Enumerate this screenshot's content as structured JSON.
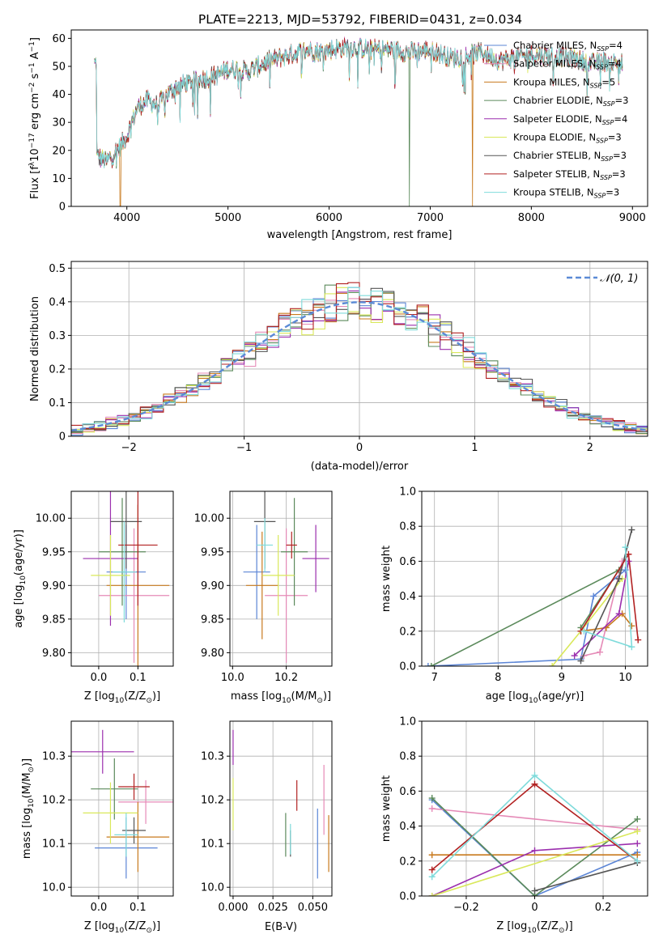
{
  "figure": {
    "title": "PLATE=2213, MJD=53792, FIBERID=0431, z=0.034"
  },
  "colors": [
    "#5b85d6",
    "#e58ab7",
    "#c87a1e",
    "#5b8a5b",
    "#9b2fae",
    "#d9e85a",
    "#555555",
    "#b22222",
    "#7fdbdb"
  ],
  "chart_data": [
    {
      "id": "spectrum",
      "type": "line",
      "title": "PLATE=2213, MJD=53792, FIBERID=0431, z=0.034",
      "xlabel": "wavelength [Angstrom, rest frame]",
      "ylabel_parts": [
        "Flux [f",
        "λ",
        "10",
        "−17",
        " erg cm",
        "−2",
        " s",
        "−1",
        " A",
        "−1",
        "]"
      ],
      "xlim": [
        3450,
        9150
      ],
      "ylim": [
        0,
        63
      ],
      "xticks": [
        4000,
        5000,
        6000,
        7000,
        8000,
        9000
      ],
      "yticks": [
        0,
        10,
        20,
        30,
        40,
        50,
        60
      ],
      "legend_position": "top-right",
      "legend": [
        {
          "base": "Chabrier MILES, N",
          "sub": "SSP",
          "val": "=4"
        },
        {
          "base": "Salpeter MILES, N",
          "sub": "SSP",
          "val": "=4"
        },
        {
          "base": "Kroupa MILES, N",
          "sub": "SSP",
          "val": "=5"
        },
        {
          "base": "Chabrier ELODIE, N",
          "sub": "SSP",
          "val": "=3"
        },
        {
          "base": "Salpeter ELODIE, N",
          "sub": "SSP",
          "val": "=4"
        },
        {
          "base": "Kroupa ELODIE, N",
          "sub": "SSP",
          "val": "=3"
        },
        {
          "base": "Chabrier STELIB, N",
          "sub": "SSP",
          "val": "=3"
        },
        {
          "base": "Salpeter STELIB, N",
          "sub": "SSP",
          "val": "=3"
        },
        {
          "base": "Kroupa STELIB, N",
          "sub": "SSP",
          "val": "=3"
        }
      ],
      "continuum": [
        [
          3700,
          18
        ],
        [
          3800,
          16
        ],
        [
          3900,
          20
        ],
        [
          4000,
          25
        ],
        [
          4100,
          35
        ],
        [
          4200,
          38
        ],
        [
          4300,
          36
        ],
        [
          4400,
          40
        ],
        [
          4500,
          43
        ],
        [
          4600,
          44
        ],
        [
          4700,
          45
        ],
        [
          4800,
          46
        ],
        [
          4900,
          47
        ],
        [
          5000,
          49
        ],
        [
          5100,
          49
        ],
        [
          5200,
          48
        ],
        [
          5300,
          50
        ],
        [
          5400,
          52
        ],
        [
          5500,
          53
        ],
        [
          5600,
          54
        ],
        [
          5700,
          55
        ],
        [
          5800,
          56
        ],
        [
          5900,
          55
        ],
        [
          6000,
          56
        ],
        [
          6200,
          57
        ],
        [
          6400,
          56
        ],
        [
          6600,
          56
        ],
        [
          6800,
          55
        ],
        [
          7000,
          56
        ],
        [
          7200,
          53
        ],
        [
          7400,
          54
        ],
        [
          7500,
          55
        ],
        [
          7700,
          52
        ],
        [
          7800,
          53
        ],
        [
          8000,
          54
        ],
        [
          8100,
          54
        ],
        [
          8400,
          53
        ],
        [
          8600,
          51
        ],
        [
          8700,
          52
        ],
        [
          8900,
          51
        ]
      ],
      "dips": [
        {
          "x": 3935,
          "to": 0,
          "series": 2
        },
        {
          "x": 6795,
          "to": 0,
          "series": 3
        },
        {
          "x": 7420,
          "to": 0,
          "series": 2
        }
      ]
    },
    {
      "id": "residuals",
      "type": "step",
      "xlabel": "(data-model)/error",
      "ylabel": "Normed distribution",
      "xlim": [
        -2.5,
        2.5
      ],
      "ylim": [
        0,
        0.52
      ],
      "xticks": [
        -2,
        -1,
        0,
        1,
        2
      ],
      "yticks": [
        0,
        0.1,
        0.2,
        0.3,
        0.4,
        0.5
      ],
      "grid": true,
      "legend_position": "top-right",
      "normal_curve_label": "𝒩(0, 1)",
      "normal_mean": 0,
      "normal_sigma": 1,
      "bin_width": 0.1
    },
    {
      "id": "age-vs-Z",
      "type": "errorbar",
      "xlabel_parts": [
        "Z [log",
        "10",
        "(Z/Z",
        "⊙",
        ")]"
      ],
      "ylabel_parts": [
        "age  [log",
        "10",
        "(age/yr)]"
      ],
      "xlim": [
        -0.07,
        0.19
      ],
      "ylim": [
        9.78,
        10.04
      ],
      "xticks": [
        0.0,
        0.1
      ],
      "yticks": [
        9.8,
        9.85,
        9.9,
        9.95,
        10.0
      ],
      "points": [
        {
          "x": 0.07,
          "y": 9.92,
          "xerr": 0.05,
          "yerr": 0.07
        },
        {
          "x": 0.09,
          "y": 9.885,
          "xerr": 0.09,
          "yerr": 0.1
        },
        {
          "x": 0.1,
          "y": 9.9,
          "xerr": 0.08,
          "yerr": 0.12
        },
        {
          "x": 0.06,
          "y": 9.95,
          "xerr": 0.06,
          "yerr": 0.08
        },
        {
          "x": 0.03,
          "y": 9.94,
          "xerr": 0.07,
          "yerr": 0.1
        },
        {
          "x": 0.03,
          "y": 9.915,
          "xerr": 0.05,
          "yerr": 0.06
        },
        {
          "x": 0.07,
          "y": 9.995,
          "xerr": 0.04,
          "yerr": 0.07
        },
        {
          "x": 0.1,
          "y": 9.96,
          "xerr": 0.05,
          "yerr": 0.09
        },
        {
          "x": 0.065,
          "y": 9.92,
          "xerr": 0.03,
          "yerr": 0.075
        }
      ]
    },
    {
      "id": "age-vs-mass",
      "type": "errorbar",
      "xlabel_parts": [
        "mass [log",
        "10",
        "(M/M",
        "⊙",
        ")]"
      ],
      "xlim": [
        9.99,
        10.37
      ],
      "ylim": [
        9.78,
        10.04
      ],
      "xticks": [
        10.0,
        10.2
      ],
      "yticks": [
        9.8,
        9.85,
        9.9,
        9.95,
        10.0
      ],
      "points": [
        {
          "x": 10.09,
          "y": 9.92,
          "xerr": 0.05,
          "yerr": 0.07
        },
        {
          "x": 10.2,
          "y": 9.885,
          "xerr": 0.08,
          "yerr": 0.1
        },
        {
          "x": 10.11,
          "y": 9.9,
          "xerr": 0.06,
          "yerr": 0.08
        },
        {
          "x": 10.23,
          "y": 9.95,
          "xerr": 0.05,
          "yerr": 0.08
        },
        {
          "x": 10.31,
          "y": 9.94,
          "xerr": 0.05,
          "yerr": 0.05
        },
        {
          "x": 10.17,
          "y": 9.915,
          "xerr": 0.06,
          "yerr": 0.06
        },
        {
          "x": 10.12,
          "y": 9.995,
          "xerr": 0.04,
          "yerr": 0.07
        },
        {
          "x": 10.22,
          "y": 9.96,
          "xerr": 0.02,
          "yerr": 0.02
        },
        {
          "x": 10.12,
          "y": 9.96,
          "xerr": 0.03,
          "yerr": 0.04
        }
      ]
    },
    {
      "id": "mass-weight-vs-age",
      "type": "line",
      "xlabel_parts": [
        "age  [log",
        "10",
        "(age/yr)]"
      ],
      "ylabel": "mass weight",
      "xlim": [
        6.8,
        10.35
      ],
      "ylim": [
        0,
        1.0
      ],
      "xticks": [
        7,
        8,
        9,
        10
      ],
      "yticks": [
        0,
        0.2,
        0.4,
        0.6,
        0.8,
        1.0
      ],
      "grid": true,
      "series": [
        {
          "x": [
            6.9,
            9.3,
            9.5,
            10.0
          ],
          "y": [
            0.0,
            0.04,
            0.4,
            0.55
          ]
        },
        {
          "x": [
            9.35,
            9.6,
            9.95
          ],
          "y": [
            0.06,
            0.08,
            0.6
          ]
        },
        {
          "x": [
            9.3,
            9.7,
            9.95,
            10.1
          ],
          "y": [
            0.2,
            0.22,
            0.3,
            0.23
          ]
        },
        {
          "x": [
            6.95,
            9.9,
            9.3
          ],
          "y": [
            0.0,
            0.55,
            0.22
          ]
        },
        {
          "x": [
            9.2,
            9.9,
            10.05
          ],
          "y": [
            0.06,
            0.3,
            0.6
          ]
        },
        {
          "x": [
            8.85,
            9.3,
            9.95
          ],
          "y": [
            0.0,
            0.2,
            0.5
          ]
        },
        {
          "x": [
            9.3,
            9.9,
            10.1
          ],
          "y": [
            0.03,
            0.5,
            0.78
          ]
        },
        {
          "x": [
            9.3,
            10.05,
            10.2
          ],
          "y": [
            0.2,
            0.64,
            0.15
          ]
        },
        {
          "x": [
            9.35,
            10.1,
            10.0
          ],
          "y": [
            0.2,
            0.11,
            0.68
          ]
        }
      ]
    },
    {
      "id": "mass-vs-Z",
      "type": "errorbar",
      "xlabel_parts": [
        "Z [log",
        "10",
        "(Z/Z",
        "⊙",
        ")]"
      ],
      "ylabel_parts": [
        "mass [log",
        "10",
        "(M/M",
        "⊙",
        ")]"
      ],
      "xlim": [
        -0.07,
        0.19
      ],
      "ylim": [
        9.98,
        10.38
      ],
      "xticks": [
        0.0,
        0.1
      ],
      "yticks": [
        10.0,
        10.1,
        10.2,
        10.3
      ],
      "points": [
        {
          "x": 0.07,
          "y": 10.09,
          "xerr": 0.08,
          "yerr": 0.07
        },
        {
          "x": 0.12,
          "y": 10.195,
          "xerr": 0.07,
          "yerr": 0.05
        },
        {
          "x": 0.1,
          "y": 10.115,
          "xerr": 0.08,
          "yerr": 0.08
        },
        {
          "x": 0.04,
          "y": 10.225,
          "xerr": 0.06,
          "yerr": 0.07
        },
        {
          "x": 0.01,
          "y": 10.31,
          "xerr": 0.08,
          "yerr": 0.05
        },
        {
          "x": 0.03,
          "y": 10.17,
          "xerr": 0.07,
          "yerr": 0.07
        },
        {
          "x": 0.09,
          "y": 10.13,
          "xerr": 0.03,
          "yerr": 0.03
        },
        {
          "x": 0.09,
          "y": 10.23,
          "xerr": 0.04,
          "yerr": 0.03
        },
        {
          "x": 0.07,
          "y": 10.12,
          "xerr": 0.03,
          "yerr": 0.05
        }
      ]
    },
    {
      "id": "mass-vs-EBV",
      "type": "errorbar",
      "xlabel": "E(B-V)",
      "xlim": [
        -0.002,
        0.062
      ],
      "ylim": [
        9.98,
        10.38
      ],
      "xticks": [
        0.0,
        0.025,
        0.05
      ],
      "yticks": [
        10.0,
        10.1,
        10.2,
        10.3
      ],
      "points": [
        {
          "x": 0.053,
          "y": 10.1,
          "xerr": 0,
          "yerr": 0.08
        },
        {
          "x": 0.057,
          "y": 10.2,
          "xerr": 0,
          "yerr": 0.08
        },
        {
          "x": 0.06,
          "y": 10.1,
          "xerr": 0,
          "yerr": 0.065
        },
        {
          "x": 0.033,
          "y": 10.12,
          "xerr": 0,
          "yerr": 0.05
        },
        {
          "x": 0.0,
          "y": 10.32,
          "xerr": 0,
          "yerr": 0.04
        },
        {
          "x": 0.0,
          "y": 10.19,
          "xerr": 0,
          "yerr": 0.06
        },
        {
          "x": 0.036,
          "y": 10.1,
          "xerr": 0,
          "yerr": 0.03
        },
        {
          "x": 0.04,
          "y": 10.21,
          "xerr": 0,
          "yerr": 0.035
        },
        {
          "x": 0.036,
          "y": 10.11,
          "xerr": 0,
          "yerr": 0.035
        }
      ]
    },
    {
      "id": "mass-weight-vs-Z",
      "type": "line",
      "xlabel_parts": [
        "Z [log",
        "10",
        "(Z/Z",
        "⊙",
        ")]"
      ],
      "ylabel": "mass weight",
      "xlim": [
        -0.33,
        0.33
      ],
      "ylim": [
        0,
        1.0
      ],
      "xticks": [
        -0.2,
        0.0,
        0.2
      ],
      "yticks": [
        0,
        0.2,
        0.4,
        0.6,
        0.8,
        1.0
      ],
      "grid": true,
      "series": [
        {
          "x": [
            -0.3,
            0.0,
            0.3
          ],
          "y": [
            0.55,
            0.0,
            0.25
          ]
        },
        {
          "x": [
            -0.3,
            0.3
          ],
          "y": [
            0.5,
            0.38
          ]
        },
        {
          "x": [
            -0.3,
            0.3
          ],
          "y": [
            0.235,
            0.235
          ]
        },
        {
          "x": [
            -0.3,
            0.0,
            0.3
          ],
          "y": [
            0.56,
            0.0,
            0.44
          ]
        },
        {
          "x": [
            -0.3,
            0.0,
            0.3
          ],
          "y": [
            0.0,
            0.26,
            0.3
          ]
        },
        {
          "x": [
            -0.3,
            0.3
          ],
          "y": [
            0.0,
            0.37
          ]
        },
        {
          "x": [
            0.0,
            0.3
          ],
          "y": [
            0.03,
            0.19
          ]
        },
        {
          "x": [
            -0.3,
            0.0,
            0.3
          ],
          "y": [
            0.15,
            0.64,
            0.2
          ]
        },
        {
          "x": [
            -0.3,
            0.0,
            0.3
          ],
          "y": [
            0.11,
            0.69,
            0.2
          ]
        }
      ]
    }
  ]
}
